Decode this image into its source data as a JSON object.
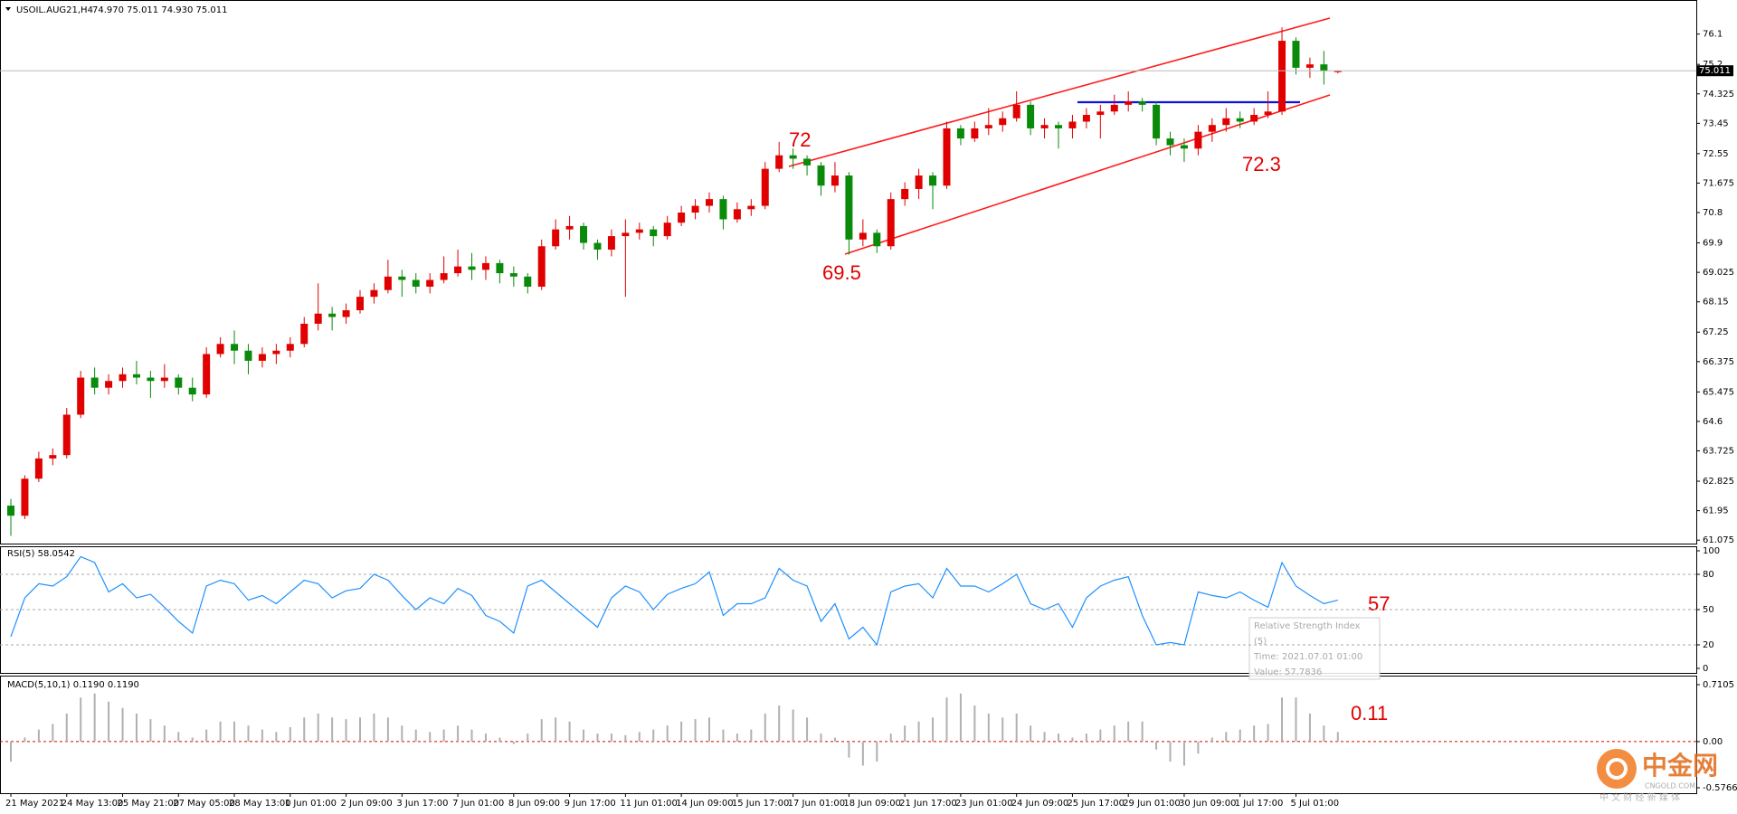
{
  "chart_data": [
    {
      "type": "candlestick",
      "title": "USOIL.AUG21,H4",
      "subtitle": "74.970 75.011 74.930 75.011",
      "up_color": "#e00000",
      "down_color": "#0a8a0a",
      "ylim": [
        61.0,
        76.95
      ],
      "yticks": [
        61.075,
        61.95,
        62.825,
        63.725,
        64.6,
        65.475,
        66.375,
        67.25,
        68.15,
        69.025,
        69.9,
        70.8,
        71.675,
        72.55,
        73.45,
        74.325,
        75.2,
        76.1
      ],
      "last_price": 75.011,
      "annotations": [
        "72",
        "69.5",
        "72.3"
      ],
      "categories": [
        "21 May 2021",
        null,
        null,
        null,
        "24 May 13:00",
        null,
        null,
        null,
        "25 May 21:00",
        null,
        null,
        null,
        "27 May 05:00",
        null,
        null,
        null,
        "28 May 13:00",
        null,
        null,
        null,
        "1 Jun 01:00",
        null,
        null,
        null,
        "2 Jun 09:00",
        null,
        null,
        null,
        "3 Jun 17:00",
        null,
        null,
        null,
        "7 Jun 01:00",
        null,
        null,
        null,
        "8 Jun 09:00",
        null,
        null,
        null,
        "9 Jun 17:00",
        null,
        null,
        null,
        "11 Jun 01:00",
        null,
        null,
        null,
        "14 Jun 09:00",
        null,
        null,
        null,
        "15 Jun 17:00",
        null,
        null,
        null,
        "17 Jun 01:00",
        null,
        null,
        null,
        "18 Jun 09:00",
        null,
        null,
        null,
        "21 Jun 17:00",
        null,
        null,
        null,
        "23 Jun 01:00",
        null,
        null,
        null,
        "24 Jun 09:00",
        null,
        null,
        null,
        "25 Jun 17:00",
        null,
        null,
        null,
        "29 Jun 01:00",
        null,
        null,
        null,
        "30 Jun 09:00",
        null,
        null,
        null,
        "1 Jul 17:00",
        null,
        null,
        null,
        "5 Jul 01:00",
        null,
        null,
        null
      ],
      "candles": [
        [
          62.1,
          62.3,
          61.2,
          61.8
        ],
        [
          61.8,
          63.0,
          61.7,
          62.9
        ],
        [
          62.9,
          63.7,
          62.8,
          63.5
        ],
        [
          63.5,
          63.8,
          63.3,
          63.6
        ],
        [
          63.6,
          65.0,
          63.5,
          64.8
        ],
        [
          64.8,
          66.1,
          64.7,
          65.9
        ],
        [
          65.9,
          66.2,
          65.4,
          65.6
        ],
        [
          65.6,
          66.0,
          65.4,
          65.8
        ],
        [
          65.8,
          66.2,
          65.6,
          66.0
        ],
        [
          66.0,
          66.4,
          65.7,
          65.9
        ],
        [
          65.9,
          66.1,
          65.3,
          65.8
        ],
        [
          65.8,
          66.3,
          65.6,
          65.9
        ],
        [
          65.9,
          66.0,
          65.4,
          65.6
        ],
        [
          65.6,
          65.9,
          65.2,
          65.4
        ],
        [
          65.4,
          66.8,
          65.3,
          66.6
        ],
        [
          66.6,
          67.1,
          66.5,
          66.9
        ],
        [
          66.9,
          67.3,
          66.3,
          66.7
        ],
        [
          66.7,
          66.9,
          66.0,
          66.4
        ],
        [
          66.4,
          66.8,
          66.2,
          66.6
        ],
        [
          66.6,
          66.9,
          66.3,
          66.7
        ],
        [
          66.7,
          67.1,
          66.5,
          66.9
        ],
        [
          66.9,
          67.7,
          66.8,
          67.5
        ],
        [
          67.5,
          68.7,
          67.3,
          67.8
        ],
        [
          67.8,
          68.0,
          67.3,
          67.7
        ],
        [
          67.7,
          68.1,
          67.5,
          67.9
        ],
        [
          67.9,
          68.5,
          67.8,
          68.3
        ],
        [
          68.3,
          68.7,
          68.1,
          68.5
        ],
        [
          68.5,
          69.4,
          68.4,
          68.9
        ],
        [
          68.9,
          69.1,
          68.3,
          68.8
        ],
        [
          68.8,
          69.0,
          68.4,
          68.6
        ],
        [
          68.6,
          69.0,
          68.4,
          68.8
        ],
        [
          68.8,
          69.5,
          68.7,
          69.0
        ],
        [
          69.0,
          69.7,
          68.9,
          69.2
        ],
        [
          69.2,
          69.6,
          68.8,
          69.1
        ],
        [
          69.1,
          69.5,
          68.8,
          69.3
        ],
        [
          69.3,
          69.4,
          68.7,
          69.0
        ],
        [
          69.0,
          69.2,
          68.6,
          68.9
        ],
        [
          68.9,
          69.0,
          68.4,
          68.6
        ],
        [
          68.6,
          70.0,
          68.5,
          69.8
        ],
        [
          69.8,
          70.6,
          69.7,
          70.3
        ],
        [
          70.3,
          70.7,
          70.0,
          70.4
        ],
        [
          70.4,
          70.5,
          69.7,
          69.9
        ],
        [
          69.9,
          70.0,
          69.4,
          69.7
        ],
        [
          69.7,
          70.3,
          69.5,
          70.1
        ],
        [
          70.1,
          70.6,
          68.3,
          70.2
        ],
        [
          70.2,
          70.5,
          70.0,
          70.3
        ],
        [
          70.3,
          70.4,
          69.8,
          70.1
        ],
        [
          70.1,
          70.7,
          70.0,
          70.5
        ],
        [
          70.5,
          71.0,
          70.4,
          70.8
        ],
        [
          70.8,
          71.2,
          70.6,
          71.0
        ],
        [
          71.0,
          71.4,
          70.8,
          71.2
        ],
        [
          71.2,
          71.3,
          70.3,
          70.6
        ],
        [
          70.6,
          71.1,
          70.5,
          70.9
        ],
        [
          70.9,
          71.2,
          70.7,
          71.0
        ],
        [
          71.0,
          72.3,
          70.9,
          72.1
        ],
        [
          72.1,
          72.9,
          72.0,
          72.5
        ],
        [
          72.5,
          72.7,
          72.1,
          72.4
        ],
        [
          72.4,
          72.5,
          71.9,
          72.2
        ],
        [
          72.2,
          72.3,
          71.3,
          71.6
        ],
        [
          71.6,
          72.3,
          71.4,
          71.9
        ],
        [
          71.9,
          72.0,
          69.55,
          70.0
        ],
        [
          70.0,
          70.6,
          69.8,
          70.2
        ],
        [
          70.2,
          70.3,
          69.6,
          69.8
        ],
        [
          69.8,
          71.4,
          69.7,
          71.2
        ],
        [
          71.2,
          71.7,
          71.0,
          71.5
        ],
        [
          71.5,
          72.1,
          71.2,
          71.9
        ],
        [
          71.9,
          72.0,
          70.9,
          71.6
        ],
        [
          71.6,
          73.5,
          71.5,
          73.3
        ],
        [
          73.3,
          73.4,
          72.8,
          73.0
        ],
        [
          73.0,
          73.5,
          72.9,
          73.3
        ],
        [
          73.3,
          73.9,
          73.1,
          73.4
        ],
        [
          73.4,
          73.8,
          73.2,
          73.6
        ],
        [
          73.6,
          74.4,
          73.5,
          74.0
        ],
        [
          74.0,
          74.1,
          73.1,
          73.3
        ],
        [
          73.3,
          73.6,
          73.0,
          73.4
        ],
        [
          73.4,
          73.5,
          72.7,
          73.3
        ],
        [
          73.3,
          73.7,
          73.0,
          73.5
        ],
        [
          73.5,
          73.9,
          73.3,
          73.7
        ],
        [
          73.7,
          74.0,
          73.0,
          73.8
        ],
        [
          73.8,
          74.3,
          73.7,
          74.0
        ],
        [
          74.0,
          74.4,
          73.8,
          74.1
        ],
        [
          74.1,
          74.2,
          73.8,
          74.0
        ],
        [
          74.0,
          74.1,
          72.8,
          73.0
        ],
        [
          73.0,
          73.2,
          72.5,
          72.8
        ],
        [
          72.8,
          73.0,
          72.3,
          72.7
        ],
        [
          72.7,
          73.4,
          72.5,
          73.2
        ],
        [
          73.2,
          73.6,
          72.9,
          73.4
        ],
        [
          73.4,
          73.9,
          73.2,
          73.6
        ],
        [
          73.6,
          73.8,
          73.3,
          73.5
        ],
        [
          73.5,
          73.9,
          73.4,
          73.7
        ],
        [
          73.7,
          74.4,
          73.6,
          73.8
        ],
        [
          73.8,
          76.3,
          73.7,
          75.9
        ],
        [
          75.9,
          76.0,
          74.9,
          75.1
        ],
        [
          75.1,
          75.4,
          74.8,
          75.2
        ],
        [
          75.2,
          75.6,
          74.6,
          75.0
        ],
        [
          74.97,
          75.011,
          74.93,
          75.011
        ]
      ]
    },
    {
      "type": "line",
      "title": "RSI(5) 58.0542",
      "color": "#1e90ff",
      "ylim": [
        0,
        100
      ],
      "yticks": [
        0,
        20,
        50,
        80,
        100
      ],
      "levels": [
        20,
        50,
        80
      ],
      "annotations": [
        "57"
      ],
      "tooltip": [
        "Relative Strength Index",
        "(5)",
        "Time: 2021.07.01 01:00",
        "Value: 57.7836"
      ],
      "values": [
        27,
        60,
        72,
        70,
        78,
        95,
        90,
        65,
        72,
        60,
        63,
        52,
        40,
        30,
        70,
        75,
        72,
        58,
        62,
        55,
        65,
        75,
        72,
        60,
        66,
        68,
        80,
        75,
        62,
        50,
        60,
        55,
        68,
        62,
        45,
        40,
        30,
        70,
        75,
        65,
        55,
        45,
        35,
        60,
        70,
        65,
        50,
        63,
        68,
        72,
        82,
        45,
        55,
        55,
        60,
        85,
        75,
        70,
        40,
        55,
        25,
        35,
        20,
        65,
        70,
        72,
        60,
        85,
        70,
        70,
        65,
        72,
        80,
        55,
        50,
        55,
        35,
        60,
        70,
        75,
        78,
        45,
        20,
        22,
        20,
        65,
        62,
        60,
        65,
        58,
        52,
        90,
        70,
        62,
        55,
        58
      ]
    },
    {
      "type": "bar",
      "title": "MACD(5,10,1) 0.1190 0.1190",
      "color": "#b0b0b0",
      "ylim": [
        -0.5766,
        0.7105
      ],
      "yticks": [
        -0.5766,
        {
          "value": 0,
          "label": "0.00"
        },
        0.7105
      ],
      "levels": [
        0
      ],
      "annotations": [
        "0.11"
      ],
      "values": [
        -0.25,
        0.05,
        0.15,
        0.22,
        0.35,
        0.55,
        0.6,
        0.5,
        0.42,
        0.35,
        0.28,
        0.2,
        0.12,
        0.05,
        0.15,
        0.25,
        0.25,
        0.2,
        0.15,
        0.12,
        0.18,
        0.3,
        0.35,
        0.3,
        0.28,
        0.3,
        0.35,
        0.3,
        0.2,
        0.15,
        0.12,
        0.15,
        0.2,
        0.15,
        0.1,
        0.05,
        -0.03,
        0.1,
        0.28,
        0.3,
        0.25,
        0.15,
        0.1,
        0.1,
        0.08,
        0.12,
        0.15,
        0.2,
        0.25,
        0.28,
        0.3,
        0.15,
        0.1,
        0.15,
        0.35,
        0.45,
        0.4,
        0.3,
        0.1,
        0.05,
        -0.2,
        -0.3,
        -0.25,
        0.1,
        0.2,
        0.25,
        0.3,
        0.55,
        0.6,
        0.45,
        0.35,
        0.3,
        0.35,
        0.2,
        0.12,
        0.1,
        0.05,
        0.1,
        0.15,
        0.2,
        0.25,
        0.25,
        -0.1,
        -0.25,
        -0.3,
        -0.15,
        0.05,
        0.12,
        0.15,
        0.2,
        0.22,
        0.55,
        0.55,
        0.35,
        0.2,
        0.119
      ]
    }
  ],
  "watermark": {
    "name": "中金网",
    "site": "CNGOLD.COM",
    "slogan": "中 文 财 经 新 媒 体"
  }
}
